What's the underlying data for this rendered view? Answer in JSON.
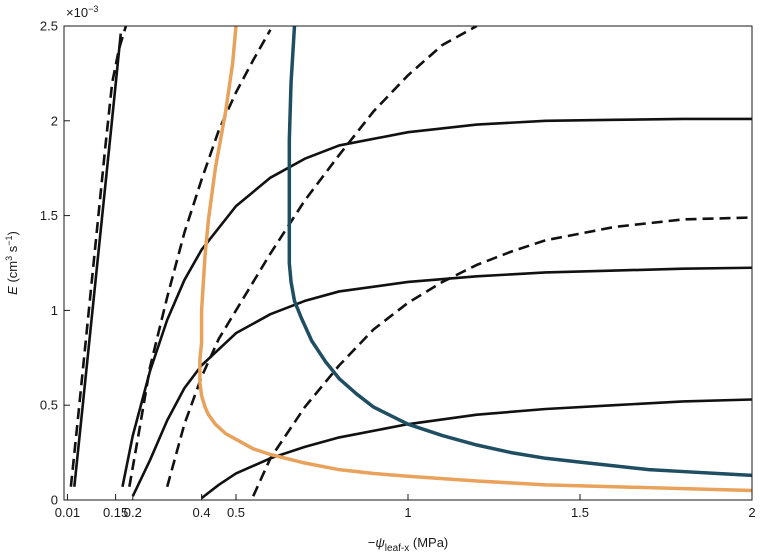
{
  "chart_data": {
    "type": "line",
    "title": "",
    "xlabel": {
      "prefix": "−",
      "symbol": "ψ",
      "subscript": "leaf-x",
      "unit": " (MPa)"
    },
    "ylabel": {
      "symbol": "E",
      "unit_open": " (cm",
      "sup1": "3",
      "mid": " s",
      "sup2": "−1",
      "unit_close": ")"
    },
    "y_multiplier": {
      "base": "×10",
      "exponent": "−3"
    },
    "xlim": [
      0,
      2
    ],
    "ylim": [
      0,
      2.5
    ],
    "x_ticks": [
      {
        "value": 0.01,
        "label": "0.01"
      },
      {
        "value": 0.15,
        "label": "0.15"
      },
      {
        "value": 0.2,
        "label": "0.2"
      },
      {
        "value": 0.4,
        "label": "0.4"
      },
      {
        "value": 0.5,
        "label": "0.5"
      },
      {
        "value": 1,
        "label": "1"
      },
      {
        "value": 1.5,
        "label": "1.5"
      },
      {
        "value": 2,
        "label": "2"
      }
    ],
    "y_ticks": [
      {
        "value": 0,
        "label": "0"
      },
      {
        "value": 0.5,
        "label": "0.5"
      },
      {
        "value": 1,
        "label": "1"
      },
      {
        "value": 1.5,
        "label": "1.5"
      },
      {
        "value": 2,
        "label": "2"
      },
      {
        "value": 2.5,
        "label": "2.5"
      }
    ],
    "grid": false,
    "legend": "none",
    "series": [
      {
        "style": "solid",
        "color": "#111111",
        "x": [
          0.03,
          0.05,
          0.08,
          0.11,
          0.14,
          0.165
        ],
        "y": [
          0.07,
          0.42,
          0.95,
          1.48,
          2.01,
          2.46
        ]
      },
      {
        "style": "dashed",
        "color": "#111111",
        "x": [
          0.02,
          0.04,
          0.06,
          0.08,
          0.1,
          0.12,
          0.14,
          0.16,
          0.18
        ],
        "y": [
          0.07,
          0.42,
          0.78,
          1.14,
          1.5,
          1.86,
          2.2,
          2.38,
          2.5
        ]
      },
      {
        "style": "solid",
        "color": "#111111",
        "x": [
          0.17,
          0.2,
          0.25,
          0.3,
          0.35,
          0.4,
          0.5,
          0.6,
          0.7,
          0.8,
          1.0,
          1.2,
          1.4,
          1.6,
          1.8,
          2.0
        ],
        "y": [
          0.07,
          0.34,
          0.68,
          0.95,
          1.16,
          1.32,
          1.55,
          1.7,
          1.8,
          1.87,
          1.94,
          1.98,
          2.0,
          2.005,
          2.01,
          2.01
        ]
      },
      {
        "style": "dashed",
        "color": "#111111",
        "x": [
          0.19,
          0.22,
          0.25,
          0.3,
          0.35,
          0.4,
          0.45,
          0.5,
          0.55,
          0.6
        ],
        "y": [
          0.07,
          0.38,
          0.7,
          1.07,
          1.41,
          1.69,
          1.95,
          2.15,
          2.32,
          2.48
        ]
      },
      {
        "style": "solid",
        "color": "#111111",
        "x": [
          0.2,
          0.25,
          0.3,
          0.35,
          0.4,
          0.5,
          0.6,
          0.7,
          0.8,
          1.0,
          1.2,
          1.4,
          1.6,
          1.8,
          2.0
        ],
        "y": [
          0.02,
          0.21,
          0.42,
          0.59,
          0.71,
          0.88,
          0.98,
          1.05,
          1.1,
          1.15,
          1.18,
          1.2,
          1.21,
          1.22,
          1.225
        ]
      },
      {
        "style": "dashed",
        "color": "#111111",
        "x": [
          0.3,
          0.35,
          0.4,
          0.45,
          0.5,
          0.6,
          0.7,
          0.8,
          0.9,
          1.0,
          1.1,
          1.2
        ],
        "y": [
          0.07,
          0.4,
          0.65,
          0.85,
          1.0,
          1.3,
          1.58,
          1.82,
          2.05,
          2.24,
          2.4,
          2.5
        ]
      },
      {
        "style": "solid",
        "color": "#111111",
        "x": [
          0.4,
          0.45,
          0.5,
          0.6,
          0.7,
          0.8,
          1.0,
          1.2,
          1.4,
          1.6,
          1.8,
          2.0
        ],
        "y": [
          0.01,
          0.08,
          0.14,
          0.22,
          0.28,
          0.33,
          0.4,
          0.45,
          0.48,
          0.5,
          0.52,
          0.53
        ]
      },
      {
        "style": "dashed",
        "color": "#111111",
        "x": [
          0.55,
          0.6,
          0.7,
          0.8,
          0.9,
          1.0,
          1.1,
          1.2,
          1.3,
          1.4,
          1.6,
          1.8,
          2.0
        ],
        "y": [
          0.02,
          0.22,
          0.49,
          0.71,
          0.9,
          1.04,
          1.15,
          1.24,
          1.31,
          1.37,
          1.44,
          1.48,
          1.49
        ]
      },
      {
        "style": "thick",
        "color": "#e8a25c",
        "x": [
          0.5,
          0.49,
          0.47,
          0.44,
          0.42,
          0.41,
          0.4,
          0.4,
          0.395,
          0.395,
          0.4,
          0.41,
          0.42,
          0.44,
          0.47,
          0.5,
          0.55,
          0.6,
          0.7,
          0.8,
          0.9,
          1.0,
          1.2,
          1.4,
          1.6,
          1.8,
          2.0
        ],
        "y": [
          2.5,
          2.3,
          2.05,
          1.75,
          1.48,
          1.29,
          1.0,
          0.83,
          0.74,
          0.62,
          0.55,
          0.49,
          0.45,
          0.4,
          0.35,
          0.32,
          0.27,
          0.24,
          0.195,
          0.16,
          0.14,
          0.125,
          0.1,
          0.08,
          0.07,
          0.06,
          0.05
        ]
      },
      {
        "style": "thick",
        "color": "#1f4e63",
        "x": [
          0.67,
          0.66,
          0.655,
          0.655,
          0.655,
          0.66,
          0.67,
          0.69,
          0.72,
          0.76,
          0.8,
          0.85,
          0.9,
          1.0,
          1.1,
          1.2,
          1.3,
          1.4,
          1.5,
          1.6,
          1.7,
          1.8,
          1.9,
          2.0
        ],
        "y": [
          2.5,
          2.2,
          1.9,
          1.55,
          1.25,
          1.15,
          1.05,
          0.96,
          0.84,
          0.73,
          0.64,
          0.56,
          0.49,
          0.4,
          0.34,
          0.29,
          0.25,
          0.22,
          0.2,
          0.18,
          0.16,
          0.15,
          0.14,
          0.13
        ]
      }
    ]
  }
}
